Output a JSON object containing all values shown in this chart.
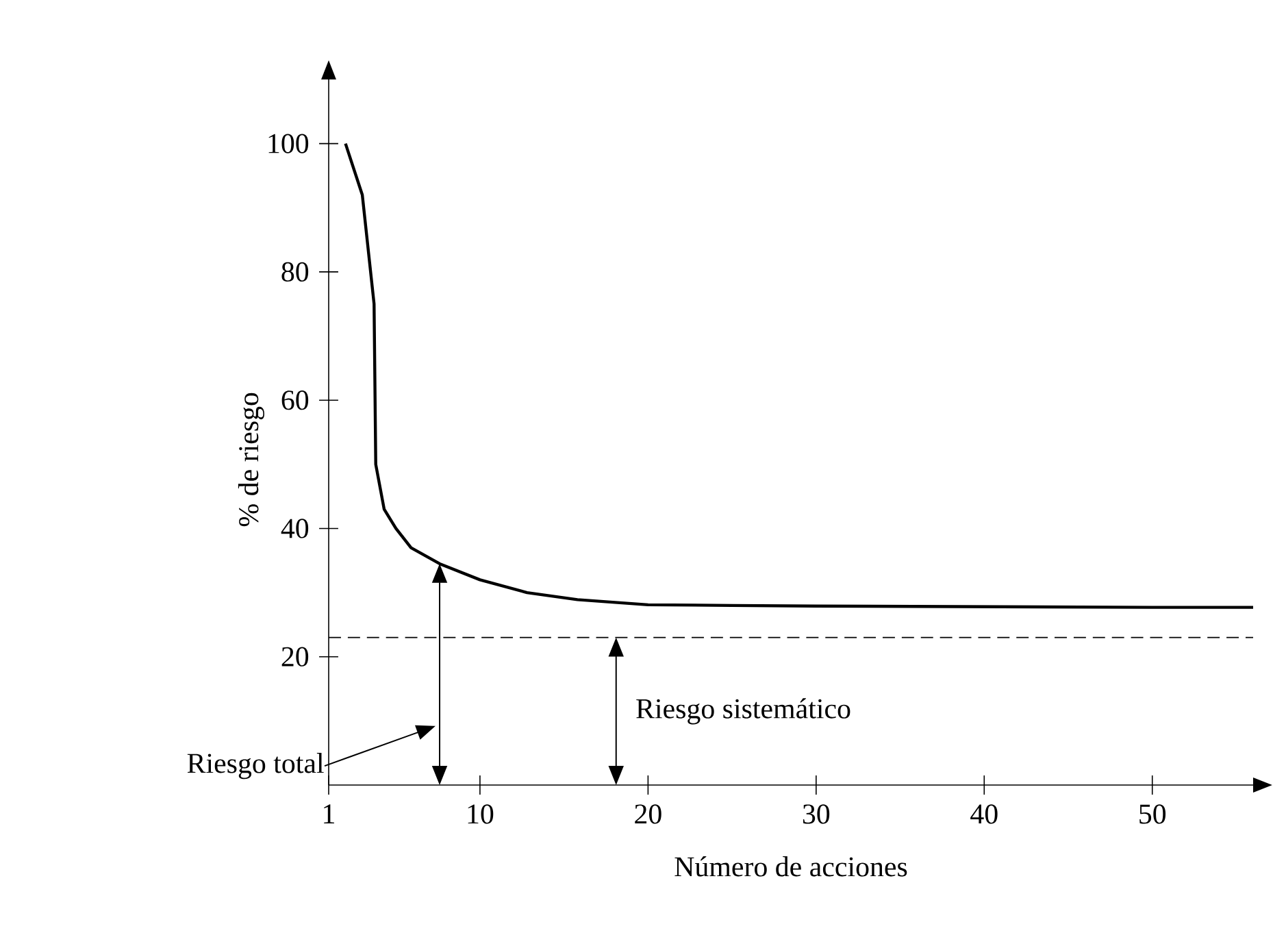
{
  "chart_data": {
    "type": "line",
    "xlabel": "Número de acciones",
    "ylabel": "% de riesgo",
    "x": [
      2,
      3,
      3.7,
      3.8,
      4.3,
      5,
      5.9,
      7.6,
      10,
      12.8,
      15.8,
      20,
      25,
      30,
      40,
      50,
      56
    ],
    "series": [
      {
        "color": "#000000",
        "values": [
          100,
          92,
          75,
          50,
          43,
          40,
          37,
          34.5,
          32,
          30,
          28.9,
          28.1,
          28,
          27.9,
          27.8,
          27.7,
          27.7
        ]
      }
    ],
    "xlim": [
      1,
      56
    ],
    "ylim": [
      0,
      110
    ],
    "xticks": [
      1,
      10,
      20,
      30,
      40,
      50
    ],
    "yticks": [
      20,
      40,
      60,
      80,
      100
    ],
    "ref_lines": [
      {
        "axis": "y",
        "value": 23,
        "color": "#000000",
        "line_style": "dashed"
      }
    ],
    "annotations": [
      "Riesgo total",
      "Riesgo sistemático"
    ],
    "grid": false,
    "marker": "none",
    "line_style": "solid"
  }
}
